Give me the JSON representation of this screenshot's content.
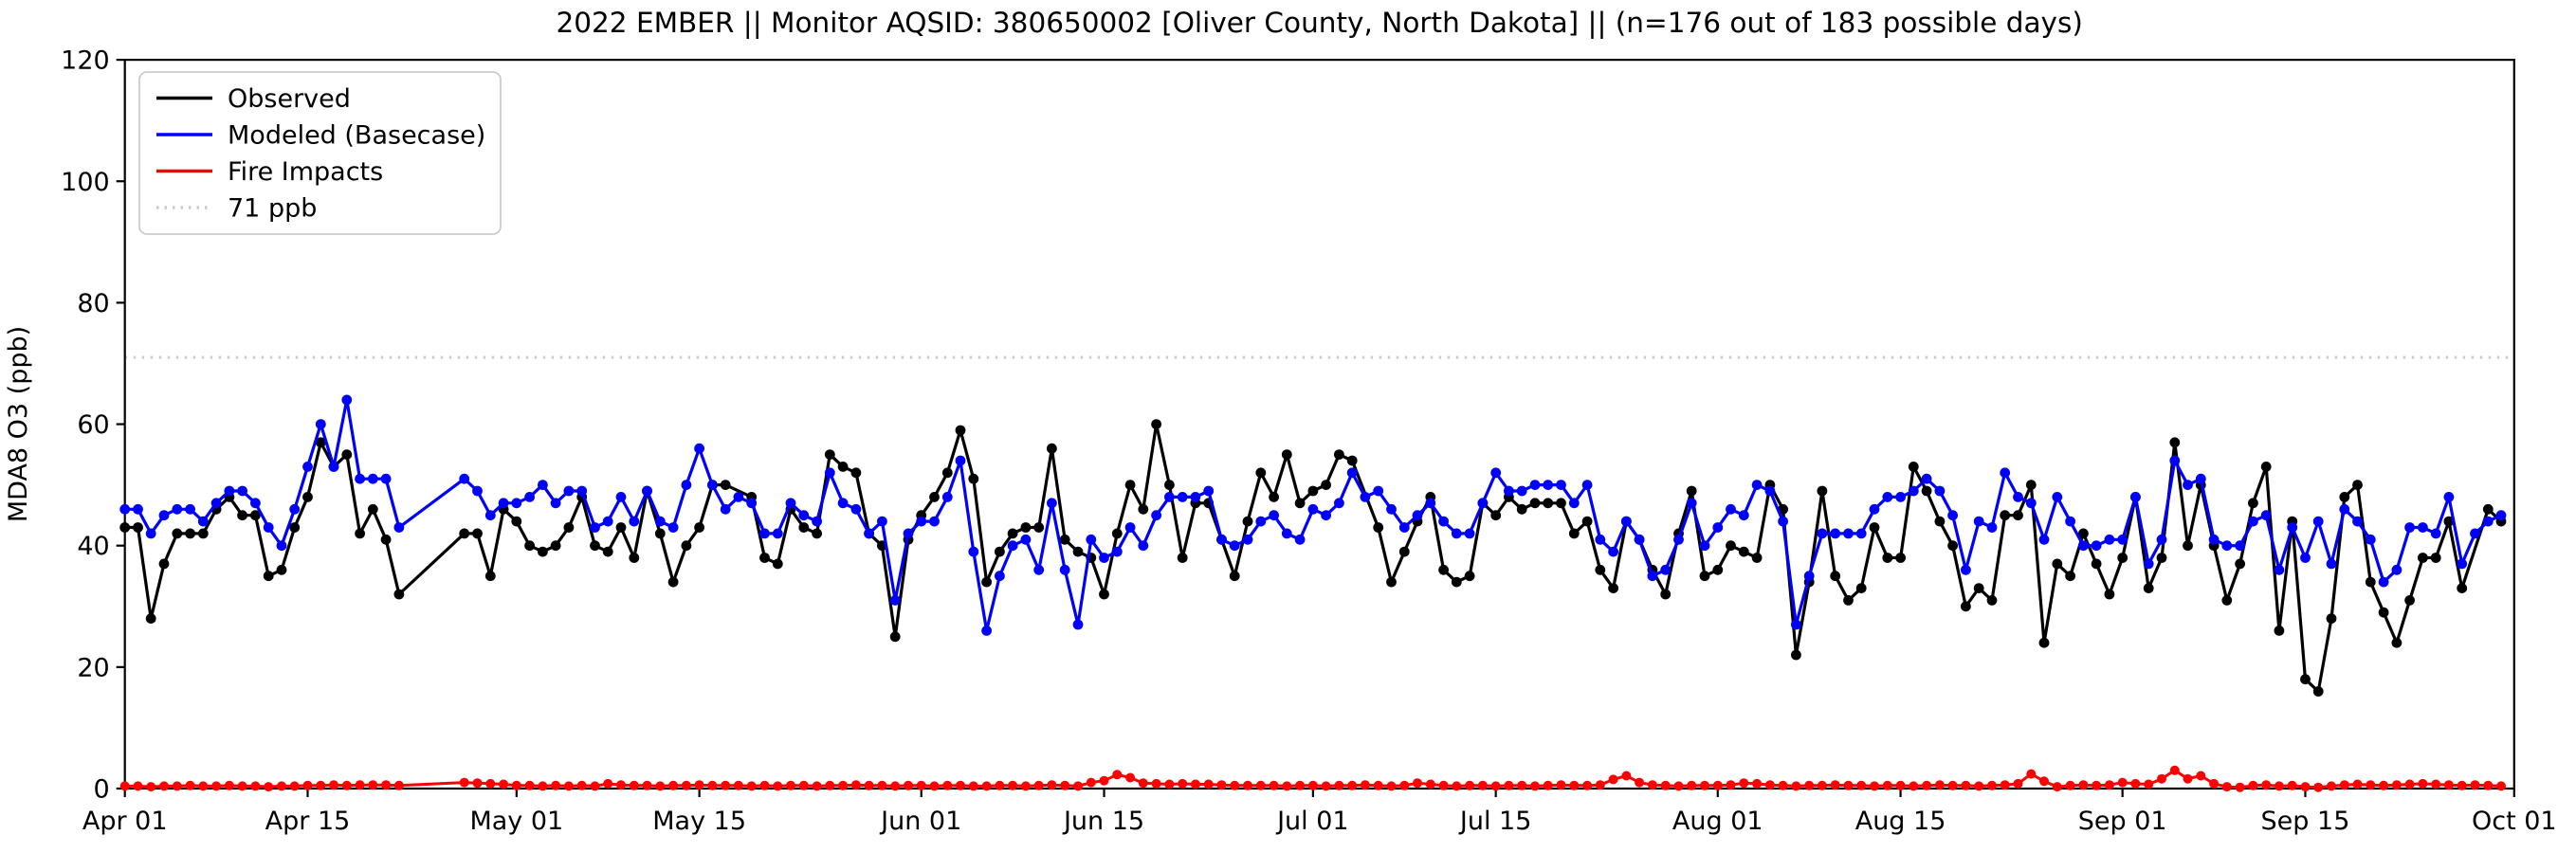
{
  "chart_data": {
    "type": "line",
    "title": "2022 EMBER || Monitor AQSID: 380650002 [Oliver County, North Dakota] || (n=176 out of 183 possible days)",
    "ylabel": "MDA8 O3 (ppb)",
    "ylim": [
      0,
      120
    ],
    "yticks": [
      0,
      20,
      40,
      60,
      80,
      100,
      120
    ],
    "x_total_days": 183,
    "xticks": [
      {
        "label": "Apr 01",
        "day": 0
      },
      {
        "label": "Apr 15",
        "day": 14
      },
      {
        "label": "May 01",
        "day": 30
      },
      {
        "label": "May 15",
        "day": 44
      },
      {
        "label": "Jun 01",
        "day": 61
      },
      {
        "label": "Jun 15",
        "day": 75
      },
      {
        "label": "Jul 01",
        "day": 91
      },
      {
        "label": "Jul 15",
        "day": 105
      },
      {
        "label": "Aug 01",
        "day": 122
      },
      {
        "label": "Aug 15",
        "day": 136
      },
      {
        "label": "Sep 01",
        "day": 153
      },
      {
        "label": "Sep 15",
        "day": 167
      },
      {
        "label": "Oct 01",
        "day": 183
      }
    ],
    "threshold": {
      "label": "71 ppb",
      "value": 71,
      "color": "#cccccc"
    },
    "legend_position": "upper left",
    "grid": false,
    "series": [
      {
        "name": "Observed",
        "color": "#000000",
        "values": [
          43,
          43,
          28,
          37,
          42,
          42,
          42,
          46,
          48,
          45,
          45,
          35,
          36,
          43,
          48,
          57,
          53,
          55,
          42,
          46,
          41,
          32,
          null,
          null,
          null,
          null,
          42,
          42,
          35,
          46,
          44,
          40,
          39,
          40,
          43,
          48,
          40,
          39,
          43,
          38,
          49,
          42,
          34,
          40,
          43,
          50,
          50,
          null,
          48,
          38,
          37,
          46,
          43,
          42,
          55,
          53,
          52,
          42,
          40,
          25,
          41,
          45,
          48,
          52,
          59,
          51,
          34,
          39,
          42,
          43,
          43,
          56,
          41,
          39,
          38,
          32,
          42,
          50,
          46,
          60,
          50,
          38,
          47,
          47,
          41,
          35,
          44,
          52,
          48,
          55,
          47,
          49,
          50,
          55,
          54,
          null,
          43,
          34,
          39,
          44,
          48,
          36,
          34,
          35,
          47,
          45,
          48,
          46,
          47,
          47,
          47,
          42,
          44,
          36,
          33,
          44,
          41,
          36,
          32,
          42,
          49,
          35,
          36,
          40,
          39,
          38,
          50,
          46,
          22,
          34,
          49,
          35,
          31,
          33,
          43,
          38,
          38,
          53,
          49,
          44,
          40,
          30,
          33,
          31,
          45,
          45,
          50,
          24,
          37,
          35,
          42,
          37,
          32,
          38,
          48,
          33,
          38,
          57,
          40,
          50,
          40,
          31,
          37,
          47,
          53,
          26,
          44,
          18,
          16,
          28,
          48,
          50,
          34,
          29,
          24,
          31,
          38,
          38,
          44,
          33,
          null,
          46,
          44
        ]
      },
      {
        "name": "Modeled (Basecase)",
        "color": "#0000ff",
        "values": [
          46,
          46,
          42,
          45,
          46,
          46,
          44,
          47,
          49,
          49,
          47,
          43,
          40,
          46,
          53,
          60,
          53,
          64,
          51,
          51,
          51,
          43,
          null,
          null,
          null,
          null,
          51,
          49,
          45,
          47,
          47,
          48,
          50,
          47,
          49,
          49,
          43,
          44,
          48,
          44,
          49,
          44,
          43,
          50,
          56,
          50,
          46,
          48,
          47,
          42,
          42,
          47,
          45,
          44,
          52,
          47,
          46,
          42,
          44,
          31,
          42,
          44,
          44,
          48,
          54,
          39,
          26,
          35,
          40,
          41,
          36,
          47,
          36,
          27,
          41,
          38,
          39,
          43,
          40,
          45,
          48,
          48,
          48,
          49,
          41,
          40,
          41,
          44,
          45,
          42,
          41,
          46,
          45,
          47,
          52,
          48,
          49,
          46,
          43,
          45,
          47,
          44,
          42,
          42,
          47,
          52,
          49,
          49,
          50,
          50,
          50,
          47,
          50,
          41,
          39,
          44,
          41,
          35,
          36,
          41,
          47,
          40,
          43,
          46,
          45,
          50,
          49,
          44,
          27,
          35,
          42,
          42,
          42,
          42,
          46,
          48,
          48,
          49,
          51,
          49,
          45,
          36,
          44,
          43,
          52,
          48,
          47,
          41,
          48,
          44,
          40,
          40,
          41,
          41,
          48,
          37,
          41,
          54,
          50,
          51,
          41,
          40,
          40,
          44,
          45,
          36,
          43,
          38,
          44,
          37,
          46,
          44,
          41,
          34,
          36,
          43,
          43,
          42,
          48,
          37,
          42,
          44,
          45
        ]
      },
      {
        "name": "Fire Impacts",
        "color": "#ff0000",
        "values": [
          0.4,
          0.4,
          0.3,
          0.4,
          0.4,
          0.5,
          0.4,
          0.4,
          0.5,
          0.4,
          0.4,
          0.3,
          0.4,
          0.4,
          0.5,
          0.5,
          0.6,
          0.5,
          0.6,
          0.6,
          0.6,
          0.5,
          null,
          null,
          null,
          null,
          1.0,
          0.9,
          0.8,
          0.7,
          0.5,
          0.5,
          0.4,
          0.5,
          0.4,
          0.5,
          0.4,
          0.8,
          0.6,
          0.5,
          0.5,
          0.4,
          0.5,
          0.5,
          0.6,
          0.5,
          0.5,
          0.5,
          0.4,
          0.5,
          0.4,
          0.5,
          0.5,
          0.4,
          0.5,
          0.5,
          0.6,
          0.5,
          0.5,
          0.4,
          0.5,
          0.5,
          0.4,
          0.5,
          0.5,
          0.4,
          0.4,
          0.5,
          0.5,
          0.4,
          0.5,
          0.6,
          0.5,
          0.4,
          1.0,
          1.3,
          2.3,
          1.8,
          0.9,
          0.8,
          0.7,
          0.8,
          0.7,
          0.7,
          0.6,
          0.5,
          0.5,
          0.5,
          0.5,
          0.4,
          0.5,
          0.5,
          0.4,
          0.5,
          0.5,
          0.6,
          0.5,
          0.4,
          0.5,
          0.9,
          0.7,
          0.5,
          0.4,
          0.5,
          0.5,
          0.4,
          0.5,
          0.5,
          0.4,
          0.5,
          0.6,
          0.5,
          0.5,
          0.6,
          1.5,
          2.1,
          1.0,
          0.6,
          0.5,
          0.4,
          0.5,
          0.5,
          0.5,
          0.6,
          0.9,
          0.8,
          0.6,
          0.5,
          0.4,
          0.5,
          0.5,
          0.6,
          0.5,
          0.5,
          0.4,
          0.5,
          0.5,
          0.4,
          0.5,
          0.6,
          0.5,
          0.5,
          0.4,
          0.5,
          0.6,
          0.8,
          2.4,
          1.2,
          0.3,
          0.5,
          0.6,
          0.5,
          0.6,
          1.0,
          0.8,
          0.7,
          1.6,
          3.0,
          1.6,
          2.1,
          0.8,
          0.3,
          0.2,
          0.5,
          0.6,
          0.4,
          0.5,
          0.3,
          0.2,
          0.4,
          0.6,
          0.7,
          0.6,
          0.5,
          0.6,
          0.7,
          0.8,
          0.7,
          0.6,
          0.5,
          0.6,
          0.5,
          0.4
        ]
      }
    ]
  }
}
